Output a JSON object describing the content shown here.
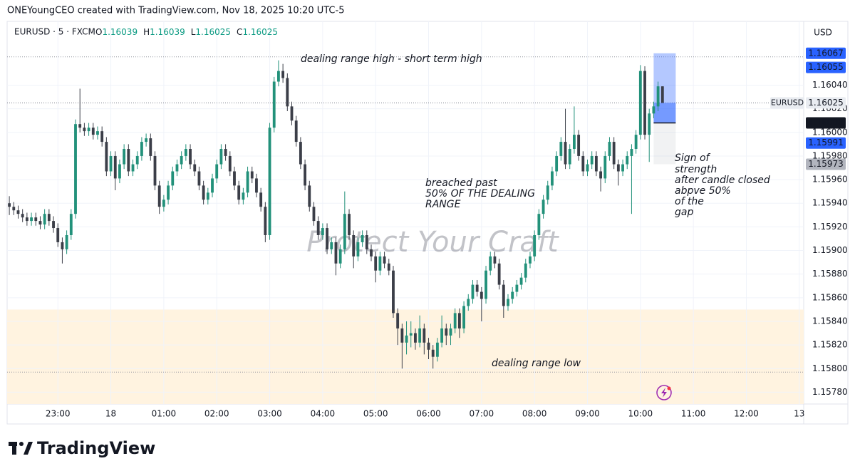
{
  "chart_data": {
    "type": "candlestick",
    "title": "ONEYoungCEO created with TradingView.com, Nov 18, 2025 10:20 UTC-5",
    "legend": {
      "symbol": "EURUSD · 5 · FXCM",
      "fields": [
        "O",
        "H",
        "L",
        "C"
      ]
    },
    "currency": "USD",
    "symbol": "EURUSD",
    "watermark": "Protect Your Craft",
    "brand": "TradingView",
    "up_color": "#22917a",
    "down_color": "#3b3e48",
    "grid": true,
    "xlim": [
      -0.5,
      180
    ],
    "ylim": [
      1.1577,
      1.16094
    ],
    "yticks": [
      {
        "value": 1.1578,
        "label": "1.15780"
      },
      {
        "value": 1.158,
        "label": "1.15800"
      },
      {
        "value": 1.1582,
        "label": "1.15820"
      },
      {
        "value": 1.1584,
        "label": "1.15840"
      },
      {
        "value": 1.1586,
        "label": "1.15860"
      },
      {
        "value": 1.1588,
        "label": "1.15880"
      },
      {
        "value": 1.159,
        "label": "1.15900"
      },
      {
        "value": 1.1592,
        "label": "1.15920"
      },
      {
        "value": 1.1594,
        "label": "1.15940"
      },
      {
        "value": 1.1596,
        "label": "1.15960"
      },
      {
        "value": 1.1598,
        "label": "1.15980"
      },
      {
        "value": 1.16,
        "label": "1.16000"
      },
      {
        "value": 1.1602,
        "label": "1.16020"
      },
      {
        "value": 1.1604,
        "label": "1.16040"
      }
    ],
    "xticks": [
      {
        "value": 11,
        "label": "23:00"
      },
      {
        "value": 23,
        "label": "18"
      },
      {
        "value": 35,
        "label": "01:00"
      },
      {
        "value": 47,
        "label": "02:00"
      },
      {
        "value": 59,
        "label": "03:00"
      },
      {
        "value": 71,
        "label": "04:00"
      },
      {
        "value": 83,
        "label": "05:00"
      },
      {
        "value": 95,
        "label": "06:00"
      },
      {
        "value": 107,
        "label": "07:00"
      },
      {
        "value": 119,
        "label": "08:00"
      },
      {
        "value": 131,
        "label": "09:00"
      },
      {
        "value": 143,
        "label": "10:00"
      },
      {
        "value": 155,
        "label": "11:00"
      },
      {
        "value": 167,
        "label": "12:00"
      },
      {
        "value": 179,
        "label": "13"
      }
    ],
    "zone": {
      "from": 1.1585,
      "to": 1.1577,
      "color": "#fff3e0"
    },
    "hlines": [
      1.16064,
      1.15797
    ],
    "range_box": {
      "from": 146,
      "to": 151
    },
    "price_labels": [
      {
        "value": 1.16067,
        "color": "#2962ff",
        "text_color": "#ffffff"
      },
      {
        "value": 1.16055,
        "color": "#2962ff",
        "text_color": "#ffffff"
      },
      {
        "value": 1.16008,
        "color": "#131722",
        "text_color": "#ffffff"
      },
      {
        "value": 1.15991,
        "color": "#2962ff",
        "text_color": "#ffffff"
      },
      {
        "value": 1.15973,
        "color": "#b2b5be",
        "text_color": "#131722"
      }
    ],
    "annotations": [
      {
        "lines": [
          "dealing range high - short term high"
        ]
      },
      {
        "lines": [
          "breached past",
          "50% OF THE DEALING",
          "RANGE"
        ]
      },
      {
        "lines": [
          "Sign of",
          "strength",
          "after candle closed",
          "abpve 50%",
          "of the",
          "gap"
        ]
      },
      {
        "lines": [
          "dealing range low"
        ]
      }
    ],
    "candles": [
      [
        1.1594,
        1.15946,
        1.1593,
        1.15937
      ],
      [
        1.15937,
        1.15941,
        1.1593,
        1.15934
      ],
      [
        1.15934,
        1.15938,
        1.15927,
        1.15931
      ],
      [
        1.15931,
        1.15935,
        1.15924,
        1.15928
      ],
      [
        1.15928,
        1.15932,
        1.15921,
        1.15925
      ],
      [
        1.15925,
        1.15932,
        1.15921,
        1.15928
      ],
      [
        1.15928,
        1.15932,
        1.15921,
        1.15925
      ],
      [
        1.15925,
        1.15929,
        1.15918,
        1.15922
      ],
      [
        1.15922,
        1.15935,
        1.15918,
        1.15931
      ],
      [
        1.15931,
        1.15935,
        1.15921,
        1.15925
      ],
      [
        1.15925,
        1.15929,
        1.15915,
        1.15919
      ],
      [
        1.15919,
        1.15923,
        1.15903,
        1.15907
      ],
      [
        1.15907,
        1.15911,
        1.15889,
        1.15901
      ],
      [
        1.15901,
        1.15917,
        1.15897,
        1.15913
      ],
      [
        1.15913,
        1.15935,
        1.15909,
        1.15931
      ],
      [
        1.15931,
        1.16011,
        1.15927,
        1.16007
      ],
      [
        1.16007,
        1.16037,
        1.16,
        1.16004
      ],
      [
        1.16004,
        1.16008,
        1.15997,
        1.16001
      ],
      [
        1.16001,
        1.16008,
        1.15997,
        1.16004
      ],
      [
        1.16004,
        1.16008,
        1.15994,
        1.15998
      ],
      [
        1.15998,
        1.16005,
        1.15994,
        1.16001
      ],
      [
        1.16001,
        1.16005,
        1.15988,
        1.15992
      ],
      [
        1.15992,
        1.15996,
        1.15963,
        1.15967
      ],
      [
        1.15967,
        1.15984,
        1.15963,
        1.1598
      ],
      [
        1.1598,
        1.15984,
        1.15951,
        1.15961
      ],
      [
        1.15961,
        1.15977,
        1.15957,
        1.15973
      ],
      [
        1.15973,
        1.1599,
        1.15969,
        1.15986
      ],
      [
        1.15986,
        1.1599,
        1.15963,
        1.15967
      ],
      [
        1.15967,
        1.15977,
        1.15963,
        1.15973
      ],
      [
        1.15973,
        1.15984,
        1.15969,
        1.1598
      ],
      [
        1.1598,
        1.15996,
        1.15976,
        1.15992
      ],
      [
        1.15992,
        1.15999,
        1.15988,
        1.15995
      ],
      [
        1.15995,
        1.15999,
        1.15976,
        1.1598
      ],
      [
        1.1598,
        1.15984,
        1.15951,
        1.15955
      ],
      [
        1.15955,
        1.15959,
        1.15931,
        1.15937
      ],
      [
        1.15937,
        1.15947,
        1.15933,
        1.15943
      ],
      [
        1.15943,
        1.15959,
        1.15939,
        1.15955
      ],
      [
        1.15955,
        1.15971,
        1.15951,
        1.15967
      ],
      [
        1.15967,
        1.15977,
        1.15963,
        1.15973
      ],
      [
        1.15973,
        1.15984,
        1.15969,
        1.1598
      ],
      [
        1.1598,
        1.1599,
        1.15976,
        1.15986
      ],
      [
        1.15986,
        1.1599,
        1.15969,
        1.15973
      ],
      [
        1.15973,
        1.15977,
        1.15963,
        1.15967
      ],
      [
        1.15967,
        1.15971,
        1.15951,
        1.15955
      ],
      [
        1.15955,
        1.15959,
        1.15939,
        1.15943
      ],
      [
        1.15943,
        1.15953,
        1.15939,
        1.15949
      ],
      [
        1.15949,
        1.15965,
        1.15945,
        1.15961
      ],
      [
        1.15961,
        1.15977,
        1.15957,
        1.15973
      ],
      [
        1.15973,
        1.1599,
        1.15969,
        1.15986
      ],
      [
        1.15986,
        1.1599,
        1.15976,
        1.1598
      ],
      [
        1.1598,
        1.15984,
        1.15963,
        1.15967
      ],
      [
        1.15967,
        1.15971,
        1.15951,
        1.15955
      ],
      [
        1.15955,
        1.15959,
        1.15939,
        1.15943
      ],
      [
        1.15943,
        1.15953,
        1.15939,
        1.15949
      ],
      [
        1.15949,
        1.15971,
        1.15945,
        1.15967
      ],
      [
        1.15967,
        1.15971,
        1.15957,
        1.15961
      ],
      [
        1.15961,
        1.15965,
        1.15945,
        1.15949
      ],
      [
        1.15949,
        1.15953,
        1.15933,
        1.15937
      ],
      [
        1.15937,
        1.15941,
        1.15907,
        1.15913
      ],
      [
        1.15913,
        1.16008,
        1.15909,
        1.16004
      ],
      [
        1.16004,
        1.16047,
        1.16,
        1.16043
      ],
      [
        1.16043,
        1.16061,
        1.16039,
        1.16052
      ],
      [
        1.16052,
        1.16058,
        1.16042,
        1.16046
      ],
      [
        1.16046,
        1.1605,
        1.16018,
        1.16022
      ],
      [
        1.16022,
        1.16026,
        1.16006,
        1.1601
      ],
      [
        1.1601,
        1.16014,
        1.15988,
        1.15992
      ],
      [
        1.15992,
        1.15996,
        1.15969,
        1.15973
      ],
      [
        1.15973,
        1.15977,
        1.15951,
        1.15955
      ],
      [
        1.15955,
        1.15959,
        1.15933,
        1.15937
      ],
      [
        1.15937,
        1.15941,
        1.15921,
        1.15925
      ],
      [
        1.15925,
        1.15929,
        1.15909,
        1.15913
      ],
      [
        1.15913,
        1.15923,
        1.15909,
        1.15919
      ],
      [
        1.15919,
        1.15923,
        1.15897,
        1.15901
      ],
      [
        1.15901,
        1.15911,
        1.15897,
        1.15907
      ],
      [
        1.15907,
        1.15911,
        1.15879,
        1.15889
      ],
      [
        1.15889,
        1.15905,
        1.15885,
        1.15901
      ],
      [
        1.15901,
        1.1595,
        1.15897,
        1.15931
      ],
      [
        1.15931,
        1.15935,
        1.15909,
        1.15913
      ],
      [
        1.15913,
        1.15917,
        1.15885,
        1.15895
      ],
      [
        1.15895,
        1.15911,
        1.15891,
        1.15907
      ],
      [
        1.15907,
        1.15917,
        1.15903,
        1.15913
      ],
      [
        1.15913,
        1.15917,
        1.15897,
        1.15901
      ],
      [
        1.15901,
        1.15905,
        1.15891,
        1.15895
      ],
      [
        1.15895,
        1.15899,
        1.15873,
        1.15883
      ],
      [
        1.15883,
        1.15899,
        1.15879,
        1.15895
      ],
      [
        1.15895,
        1.15899,
        1.15885,
        1.15889
      ],
      [
        1.15889,
        1.15893,
        1.15879,
        1.15883
      ],
      [
        1.15883,
        1.15887,
        1.15843,
        1.15847
      ],
      [
        1.15847,
        1.15851,
        1.1582,
        1.15834
      ],
      [
        1.15834,
        1.15838,
        1.158,
        1.15822
      ],
      [
        1.15822,
        1.1584,
        1.15812,
        1.15828
      ],
      [
        1.15828,
        1.1584,
        1.15818,
        1.1583
      ],
      [
        1.1583,
        1.15834,
        1.15816,
        1.15822
      ],
      [
        1.15822,
        1.15845,
        1.15818,
        1.15834
      ],
      [
        1.15834,
        1.15838,
        1.15812,
        1.15822
      ],
      [
        1.15822,
        1.15826,
        1.15808,
        1.15816
      ],
      [
        1.15816,
        1.1582,
        1.158,
        1.1581
      ],
      [
        1.1581,
        1.15826,
        1.15806,
        1.15822
      ],
      [
        1.15822,
        1.15845,
        1.15818,
        1.15834
      ],
      [
        1.15834,
        1.15838,
        1.1582,
        1.15828
      ],
      [
        1.15828,
        1.15838,
        1.1582,
        1.15834
      ],
      [
        1.15834,
        1.15851,
        1.1583,
        1.15847
      ],
      [
        1.15847,
        1.15851,
        1.15826,
        1.15834
      ],
      [
        1.15834,
        1.15857,
        1.1583,
        1.15853
      ],
      [
        1.15853,
        1.15863,
        1.15849,
        1.15859
      ],
      [
        1.15859,
        1.15875,
        1.15855,
        1.15871
      ],
      [
        1.15871,
        1.15875,
        1.15861,
        1.15865
      ],
      [
        1.15865,
        1.15869,
        1.1584,
        1.15859
      ],
      [
        1.15859,
        1.15887,
        1.15855,
        1.15883
      ],
      [
        1.15883,
        1.15899,
        1.15879,
        1.15895
      ],
      [
        1.15895,
        1.15899,
        1.15885,
        1.15889
      ],
      [
        1.15889,
        1.15893,
        1.15867,
        1.15871
      ],
      [
        1.15871,
        1.15875,
        1.15843,
        1.15853
      ],
      [
        1.15853,
        1.15863,
        1.15849,
        1.15859
      ],
      [
        1.15859,
        1.15869,
        1.15855,
        1.15865
      ],
      [
        1.15865,
        1.15875,
        1.15861,
        1.15871
      ],
      [
        1.15871,
        1.15881,
        1.15867,
        1.15877
      ],
      [
        1.15877,
        1.15893,
        1.15873,
        1.15889
      ],
      [
        1.15889,
        1.15899,
        1.15885,
        1.15895
      ],
      [
        1.15895,
        1.15917,
        1.15891,
        1.15913
      ],
      [
        1.15913,
        1.15935,
        1.15909,
        1.15931
      ],
      [
        1.15931,
        1.15947,
        1.15927,
        1.15943
      ],
      [
        1.15943,
        1.15959,
        1.15939,
        1.15955
      ],
      [
        1.15955,
        1.15971,
        1.15951,
        1.15967
      ],
      [
        1.15967,
        1.15984,
        1.15963,
        1.1598
      ],
      [
        1.1598,
        1.15996,
        1.15976,
        1.15992
      ],
      [
        1.15992,
        1.1602,
        1.15969,
        1.15973
      ],
      [
        1.15973,
        1.1599,
        1.15969,
        1.15986
      ],
      [
        1.15986,
        1.16022,
        1.15982,
        1.15998
      ],
      [
        1.15998,
        1.16002,
        1.15976,
        1.1598
      ],
      [
        1.1598,
        1.15984,
        1.15963,
        1.15967
      ],
      [
        1.15967,
        1.15977,
        1.15963,
        1.15973
      ],
      [
        1.15973,
        1.15984,
        1.15969,
        1.1598
      ],
      [
        1.1598,
        1.15984,
        1.15963,
        1.15967
      ],
      [
        1.15967,
        1.15971,
        1.1595,
        1.15961
      ],
      [
        1.15961,
        1.15984,
        1.15957,
        1.1598
      ],
      [
        1.1598,
        1.15996,
        1.15976,
        1.15992
      ],
      [
        1.15992,
        1.15996,
        1.15969,
        1.15973
      ],
      [
        1.15973,
        1.15977,
        1.15955,
        1.15967
      ],
      [
        1.15967,
        1.15977,
        1.15963,
        1.15973
      ],
      [
        1.15973,
        1.15984,
        1.15969,
        1.1598
      ],
      [
        1.1598,
        1.1599,
        1.15931,
        1.15986
      ],
      [
        1.15986,
        1.16002,
        1.15982,
        1.15998
      ],
      [
        1.15998,
        1.16057,
        1.15994,
        1.16052
      ],
      [
        1.16052,
        1.16056,
        1.15994,
        1.15998
      ],
      [
        1.15998,
        1.1602,
        1.15975,
        1.16016
      ],
      [
        1.16016,
        1.16026,
        1.16012,
        1.16022
      ],
      [
        1.16022,
        1.16043,
        1.16018,
        1.16039
      ],
      [
        1.16039,
        1.16039,
        1.16025,
        1.16025
      ]
    ]
  }
}
